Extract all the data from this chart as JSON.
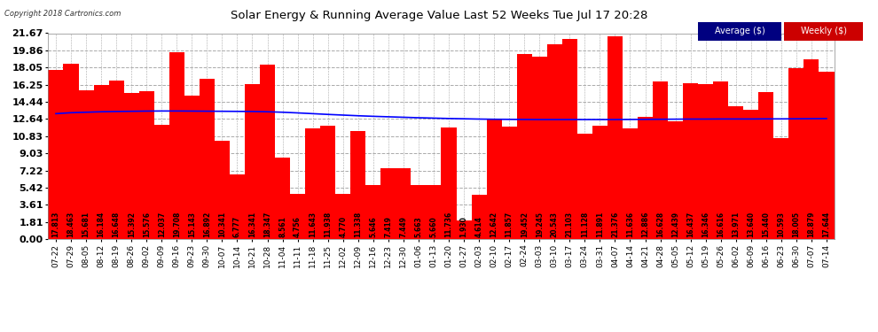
{
  "title": "Solar Energy & Running Average Value Last 52 Weeks Tue Jul 17 20:28",
  "copyright": "Copyright 2018 Cartronics.com",
  "bar_color": "#ff0000",
  "avg_line_color": "#0000ff",
  "background_color": "#ffffff",
  "plot_bg_color": "#ffffff",
  "grid_color": "#aaaaaa",
  "yticks": [
    0.0,
    1.81,
    3.61,
    5.42,
    7.22,
    9.03,
    10.83,
    12.64,
    14.44,
    16.25,
    18.05,
    19.86,
    21.67
  ],
  "categories": [
    "07-22",
    "07-29",
    "08-05",
    "08-12",
    "08-19",
    "08-26",
    "09-02",
    "09-09",
    "09-16",
    "09-23",
    "09-30",
    "10-07",
    "10-14",
    "10-21",
    "10-28",
    "11-04",
    "11-11",
    "11-18",
    "11-25",
    "12-02",
    "12-09",
    "12-16",
    "12-23",
    "12-30",
    "01-06",
    "01-13",
    "01-20",
    "01-27",
    "02-03",
    "02-10",
    "02-17",
    "02-24",
    "03-03",
    "03-10",
    "03-17",
    "03-24",
    "03-31",
    "04-07",
    "04-14",
    "04-21",
    "04-28",
    "05-05",
    "05-12",
    "05-19",
    "05-26",
    "06-02",
    "06-09",
    "06-16",
    "06-23",
    "06-30",
    "07-07",
    "07-14"
  ],
  "values": [
    17.813,
    18.463,
    15.681,
    16.184,
    16.648,
    15.392,
    15.576,
    12.037,
    19.708,
    15.143,
    16.892,
    10.341,
    6.777,
    16.341,
    18.347,
    8.561,
    4.756,
    11.643,
    11.938,
    4.77,
    11.338,
    5.646,
    7.419,
    7.449,
    5.663,
    5.66,
    11.736,
    1.93,
    4.614,
    12.642,
    11.857,
    19.452,
    19.245,
    20.543,
    21.103,
    11.128,
    11.891,
    21.376,
    11.636,
    12.886,
    16.628,
    12.439,
    16.437,
    16.346,
    16.616,
    13.971,
    13.64,
    15.44,
    10.593,
    18.005,
    18.879,
    17.644
  ],
  "avg_values": [
    13.2,
    13.3,
    13.35,
    13.4,
    13.43,
    13.45,
    13.47,
    13.48,
    13.48,
    13.47,
    13.46,
    13.45,
    13.44,
    13.43,
    13.4,
    13.35,
    13.28,
    13.2,
    13.12,
    13.05,
    12.98,
    12.92,
    12.87,
    12.82,
    12.77,
    12.73,
    12.69,
    12.66,
    12.63,
    12.61,
    12.6,
    12.59,
    12.58,
    12.58,
    12.58,
    12.58,
    12.58,
    12.58,
    12.59,
    12.6,
    12.61,
    12.62,
    12.63,
    12.63,
    12.64,
    12.64,
    12.64,
    12.65,
    12.65,
    12.66,
    12.67,
    12.68
  ],
  "ylim": [
    0,
    21.67
  ],
  "bar_text_fontsize": 5.5,
  "ytick_fontsize": 8,
  "xtick_fontsize": 6.5,
  "legend_avg_bg": "#000080",
  "legend_weekly_color": "#ff0000"
}
